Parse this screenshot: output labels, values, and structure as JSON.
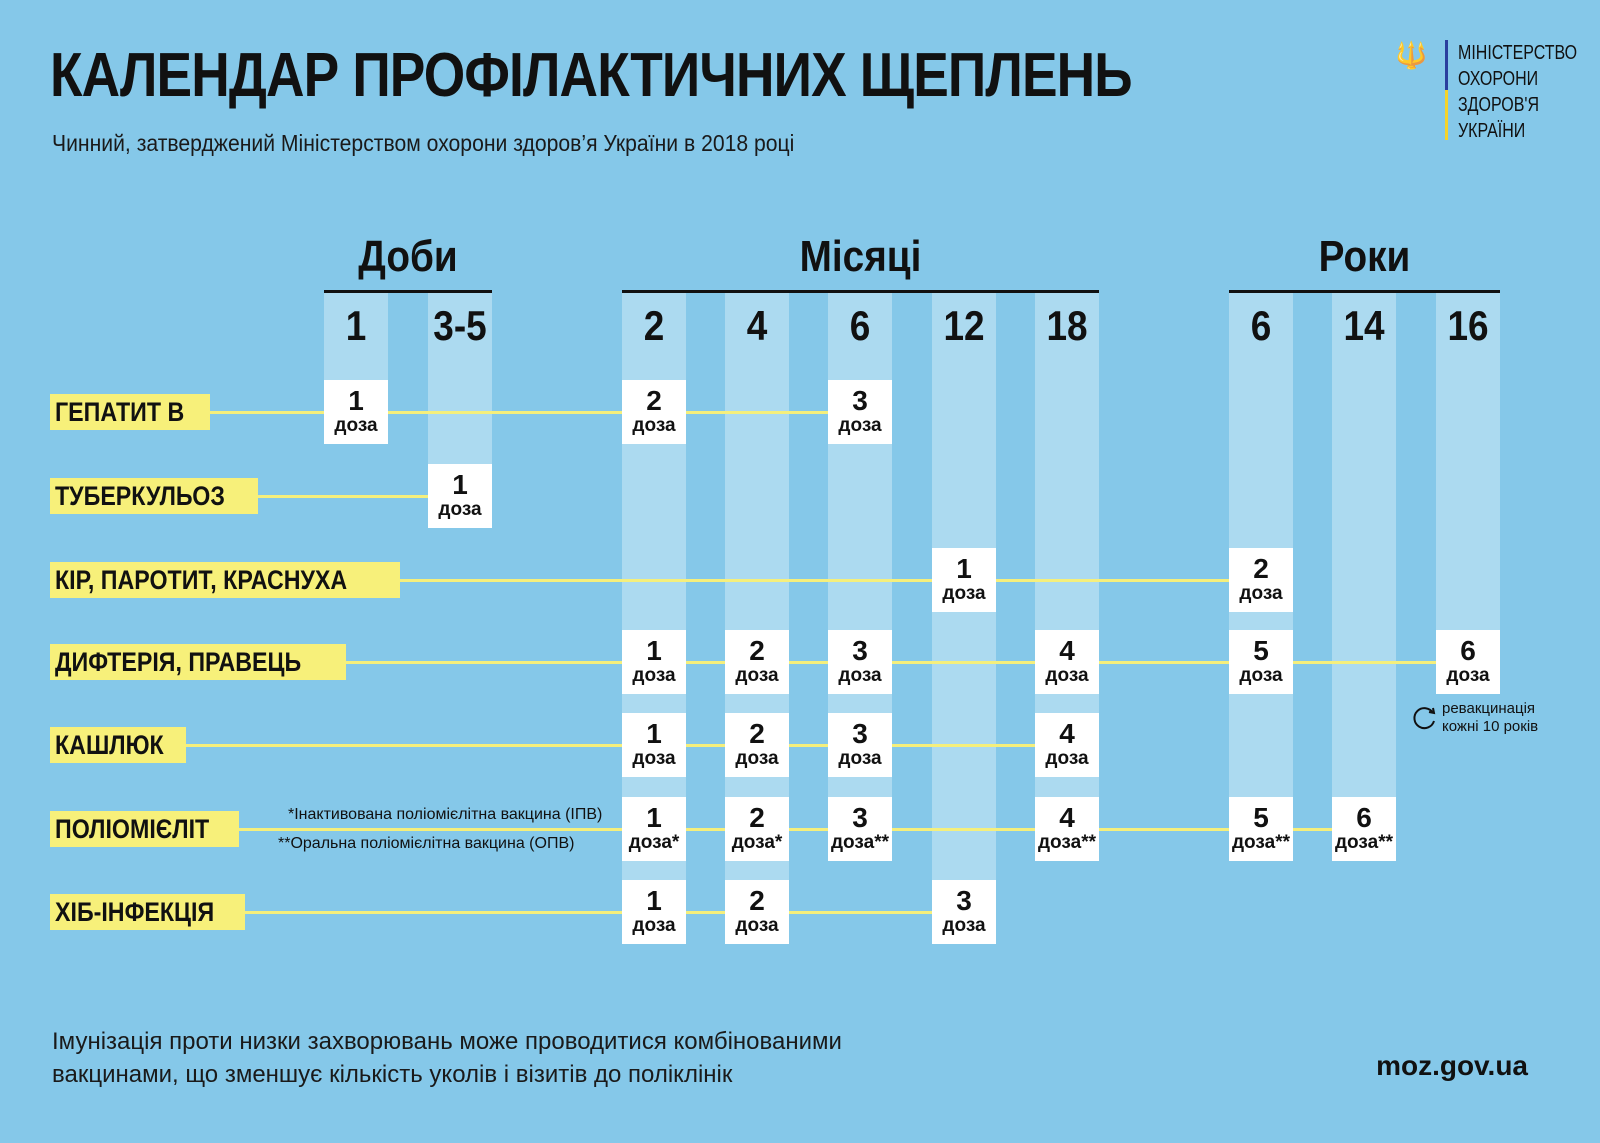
{
  "title": "КАЛЕНДАР ПРОФІЛАКТИЧНИХ ЩЕПЛЕНЬ",
  "subtitle": "Чинний, затверджений Міністерством охорони здоров’я України в 2018 році",
  "logo": {
    "icon": "trident-icon",
    "lines": [
      "МІНІСТЕРСТВО",
      "ОХОРОНИ",
      "ЗДОРОВ'Я",
      "УКРАЇНИ"
    ],
    "colors": [
      "#2a3f9e",
      "#f6d32a"
    ]
  },
  "groups": [
    {
      "label": "Доби",
      "cols": [
        0,
        1
      ]
    },
    {
      "label": "Місяці",
      "cols": [
        2,
        3,
        4,
        5,
        6
      ]
    },
    {
      "label": "Роки",
      "cols": [
        7,
        8,
        9
      ]
    }
  ],
  "columns": [
    "1",
    "3-5",
    "2",
    "4",
    "6",
    "12",
    "18",
    "6",
    "14",
    "16"
  ],
  "dose_word": "доза",
  "rows": [
    {
      "label": "ГЕПАТИТ В",
      "doses": [
        {
          "col": 0,
          "n": "1",
          "mark": ""
        },
        {
          "col": 2,
          "n": "2",
          "mark": ""
        },
        {
          "col": 4,
          "n": "3",
          "mark": ""
        }
      ]
    },
    {
      "label": "ТУБЕРКУЛЬОЗ",
      "doses": [
        {
          "col": 1,
          "n": "1",
          "mark": ""
        }
      ]
    },
    {
      "label": "КІР, ПАРОТИТ, КРАСНУХА",
      "doses": [
        {
          "col": 5,
          "n": "1",
          "mark": ""
        },
        {
          "col": 7,
          "n": "2",
          "mark": ""
        }
      ]
    },
    {
      "label": "ДИФТЕРІЯ, ПРАВЕЦЬ",
      "doses": [
        {
          "col": 2,
          "n": "1",
          "mark": ""
        },
        {
          "col": 3,
          "n": "2",
          "mark": ""
        },
        {
          "col": 4,
          "n": "3",
          "mark": ""
        },
        {
          "col": 6,
          "n": "4",
          "mark": ""
        },
        {
          "col": 7,
          "n": "5",
          "mark": ""
        },
        {
          "col": 9,
          "n": "6",
          "mark": ""
        }
      ]
    },
    {
      "label": "КАШЛЮК",
      "doses": [
        {
          "col": 2,
          "n": "1",
          "mark": ""
        },
        {
          "col": 3,
          "n": "2",
          "mark": ""
        },
        {
          "col": 4,
          "n": "3",
          "mark": ""
        },
        {
          "col": 6,
          "n": "4",
          "mark": ""
        }
      ]
    },
    {
      "label": "ПОЛІОМІЄЛІТ",
      "doses": [
        {
          "col": 2,
          "n": "1",
          "mark": "*"
        },
        {
          "col": 3,
          "n": "2",
          "mark": "*"
        },
        {
          "col": 4,
          "n": "3",
          "mark": "**"
        },
        {
          "col": 6,
          "n": "4",
          "mark": "**"
        },
        {
          "col": 7,
          "n": "5",
          "mark": "**"
        },
        {
          "col": 8,
          "n": "6",
          "mark": "**"
        }
      ]
    },
    {
      "label": "ХІБ-ІНФЕКЦІЯ",
      "doses": [
        {
          "col": 2,
          "n": "1",
          "mark": ""
        },
        {
          "col": 3,
          "n": "2",
          "mark": ""
        },
        {
          "col": 5,
          "n": "3",
          "mark": ""
        }
      ]
    }
  ],
  "notes": {
    "ipv": "*Інактивована поліомієлітна вакцина (ІПВ)",
    "opv": "**Оральна поліомієлітна вакцина (ОПВ)"
  },
  "revaccination": {
    "icon": "refresh-icon",
    "line1": "ревакцинація",
    "line2": "кожні 10 років"
  },
  "footer": {
    "line1": "Імунізація проти низки захворювань може проводитися комбінованими",
    "line2": "вакцинами, що зменшує кількість уколів і візитів до поліклінік"
  },
  "site": "moz.gov.ua",
  "colors": {
    "background": "#85c8e9",
    "stripe": "#acdaf0",
    "highlight": "#f7f07a"
  }
}
